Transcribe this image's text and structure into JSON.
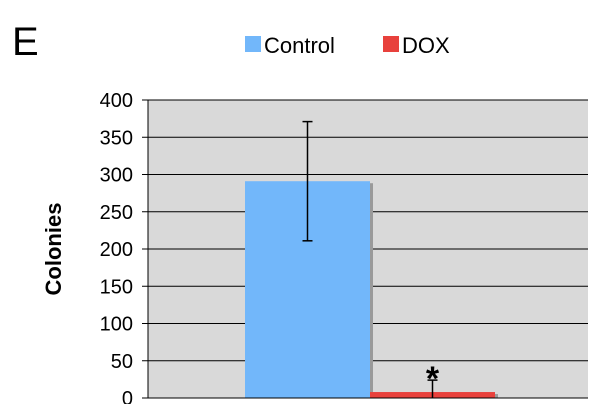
{
  "panel_label": "E",
  "chart_data": {
    "type": "bar",
    "categories": [
      ""
    ],
    "series": [
      {
        "name": "Control",
        "values": [
          291
        ],
        "error": [
          80
        ],
        "color": "#72B7FA"
      },
      {
        "name": "DOX",
        "values": [
          8
        ],
        "error": [
          16
        ],
        "color": "#E8413C"
      }
    ],
    "ylabel": "Colonies",
    "xlabel": "",
    "ylim": [
      0,
      400
    ],
    "yticks": [
      0,
      50,
      100,
      150,
      200,
      250,
      300,
      350,
      400
    ],
    "grid": true,
    "legend": "top",
    "annotations": [
      {
        "series": "DOX",
        "text": "*"
      }
    ],
    "plot_background": "#D9D9D9"
  }
}
